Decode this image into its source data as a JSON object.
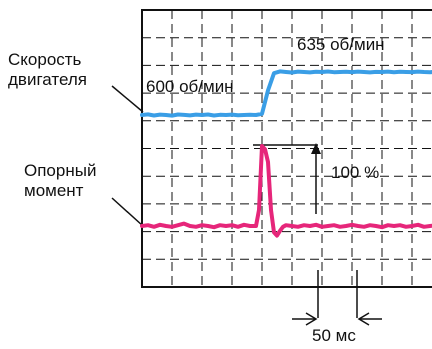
{
  "chart_data": {
    "type": "line",
    "title": "",
    "xlabel": "",
    "ylabel": "",
    "grid": true,
    "grid_divisions": {
      "x": 10,
      "y": 10
    },
    "series": [
      {
        "name": "Скорость двигателя",
        "color": "#3a9ee6",
        "description_levels": {
          "before": "600 об/мин",
          "after": "635 об/мин"
        },
        "x": [
          0,
          2,
          4,
          6,
          8,
          10,
          12,
          14,
          16,
          18,
          20,
          22,
          24,
          26,
          28,
          30,
          32,
          34,
          36,
          38,
          40,
          42,
          44,
          46,
          48,
          50,
          52,
          54,
          56,
          58,
          60,
          62,
          64,
          66,
          68,
          70,
          72,
          74,
          76,
          78,
          80,
          82,
          84,
          86,
          88,
          90,
          92,
          94,
          96,
          98,
          100
        ],
        "y": [
          600,
          600.5,
          599.6,
          600.3,
          600,
          599.5,
          600.4,
          600.1,
          599.7,
          600.3,
          600,
          600.4,
          599.6,
          600.2,
          600,
          600.3,
          599.8,
          600,
          600.2,
          600,
          601,
          620,
          634,
          635.5,
          635,
          634.6,
          635.3,
          635,
          634.7,
          635.2,
          635,
          635.4,
          634.8,
          635,
          635.2,
          634.9,
          635.3,
          635,
          634.7,
          635.1,
          635,
          635.3,
          634.8,
          635.2,
          635,
          634.9,
          635.3,
          635,
          634.8,
          635.2,
          635
        ]
      },
      {
        "name": "Опорный момент",
        "color": "#e6267a",
        "peak_label": "100 %",
        "x": [
          0,
          2,
          4,
          6,
          8,
          10,
          12,
          14,
          16,
          18,
          20,
          22,
          24,
          26,
          28,
          30,
          32,
          34,
          36,
          38,
          39,
          40,
          41,
          42,
          43,
          44,
          45,
          46,
          47,
          48,
          50,
          52,
          54,
          56,
          58,
          60,
          62,
          64,
          66,
          68,
          70,
          72,
          74,
          76,
          78,
          80,
          82,
          84,
          86,
          88,
          90,
          92,
          94,
          96,
          98,
          100
        ],
        "y": [
          0,
          1,
          -1,
          1.5,
          0,
          -1,
          1,
          3,
          0,
          -1,
          1,
          0,
          -1.5,
          1,
          0,
          1,
          -1,
          1.5,
          0,
          0,
          20,
          100,
          96,
          80,
          20,
          -8,
          -12,
          -6,
          -1,
          1,
          0,
          -1,
          1,
          0,
          1.5,
          -1,
          0,
          1,
          -1,
          0,
          1.5,
          0,
          -1,
          1,
          0,
          -1.5,
          1,
          0,
          1,
          -1,
          0,
          1.5,
          -1,
          0,
          1,
          0
        ]
      }
    ],
    "labels": {
      "speed_series_label": "Скорость\nдвигателя",
      "speed_before": "600 об/мин",
      "speed_after": "635 об/мин",
      "torque_series_label": "Опорный\nмомент",
      "torque_peak": "100 %",
      "time_span": "50 мс"
    }
  }
}
